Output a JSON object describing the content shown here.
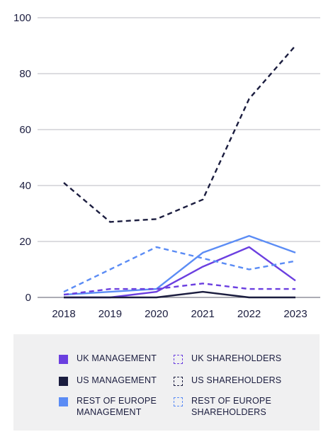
{
  "chart_data": {
    "type": "line",
    "x": [
      "2018",
      "2019",
      "2020",
      "2021",
      "2022",
      "2023"
    ],
    "ylim": [
      0,
      100
    ],
    "yticks": [
      0,
      20,
      40,
      60,
      80,
      100
    ],
    "grid": true,
    "legend_position": "bottom",
    "series": [
      {
        "name": "UK MANAGEMENT",
        "color": "#6b3fe0",
        "style": "solid",
        "values": [
          0,
          0,
          2,
          11,
          18,
          6
        ]
      },
      {
        "name": "US MANAGEMENT",
        "color": "#1b1d3f",
        "style": "solid",
        "values": [
          0,
          0,
          0,
          2,
          0,
          0
        ]
      },
      {
        "name": "REST OF EUROPE\nMANAGEMENT",
        "color": "#5b8cf5",
        "style": "solid",
        "values": [
          1,
          2,
          3,
          16,
          22,
          16
        ]
      },
      {
        "name": "UK SHAREHOLDERS",
        "color": "#6b3fe0",
        "style": "dashed",
        "values": [
          1,
          3,
          3,
          5,
          3,
          3
        ]
      },
      {
        "name": "US SHAREHOLDERS",
        "color": "#1b1d3f",
        "style": "dashed",
        "values": [
          41,
          27,
          28,
          35,
          71,
          90
        ]
      },
      {
        "name": "REST OF EUROPE\nSHAREHOLDERS",
        "color": "#5b8cf5",
        "style": "dashed",
        "values": [
          2,
          10,
          18,
          14,
          10,
          13
        ]
      }
    ]
  }
}
